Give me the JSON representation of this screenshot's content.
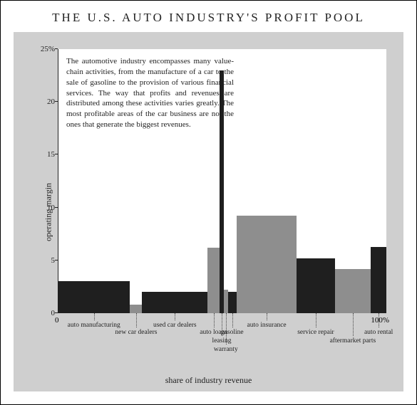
{
  "title": "THE U.S. AUTO INDUSTRY'S PROFIT POOL",
  "ylabel": "operating margin",
  "xlabel": "share of industry revenue",
  "annotation": "The automotive industry encompasses many value-chain activities, from the manufacture of a car to the sale of gasoline to the provision of various financial services. The way that profits and revenues are distributed among these activities varies greatly. The most profitable areas of the car business are not the ones that generate the biggest revenues.",
  "annotation_fontsize": 11,
  "chart": {
    "type": "variable-width-bar",
    "background_color": "#ffffff",
    "frame_color": "#cfcfcf",
    "axis_color": "#222222",
    "ylim": [
      0,
      25
    ],
    "yticks": [
      0,
      5,
      10,
      15,
      20,
      25
    ],
    "ytick_suffix_last": "%",
    "xaxis_end_labels": [
      "0",
      "100%"
    ],
    "segments": [
      {
        "label": "auto manufacturing",
        "width_pct": 21.0,
        "height": 3.0,
        "color": "#1f1f1f",
        "label_dy": 12
      },
      {
        "label": "new car dealers",
        "width_pct": 3.5,
        "height": 0.8,
        "color": "#8e8e8e",
        "label_dy": 22
      },
      {
        "label": "used car dealers",
        "width_pct": 19.0,
        "height": 2.0,
        "color": "#1f1f1f",
        "label_dy": 12
      },
      {
        "label": "auto loans",
        "width_pct": 3.5,
        "height": 6.2,
        "color": "#8e8e8e",
        "label_dy": 22
      },
      {
        "label": "leasing",
        "width_pct": 1.2,
        "height": 23.0,
        "color": "#1f1f1f",
        "label_dy": 34
      },
      {
        "label": "warranty",
        "width_pct": 1.2,
        "height": 2.2,
        "color": "#8e8e8e",
        "label_dy": 46
      },
      {
        "label": "gasoline",
        "width_pct": 2.5,
        "height": 2.0,
        "color": "#1f1f1f",
        "label_dy": 22
      },
      {
        "label": "auto insurance",
        "width_pct": 17.5,
        "height": 9.2,
        "color": "#8e8e8e",
        "label_dy": 12
      },
      {
        "label": "service repair",
        "width_pct": 11.0,
        "height": 5.2,
        "color": "#1f1f1f",
        "label_dy": 22
      },
      {
        "label": "aftermarket parts",
        "width_pct": 10.5,
        "height": 4.2,
        "color": "#8e8e8e",
        "label_dy": 34
      },
      {
        "label": "auto rental",
        "width_pct": 4.5,
        "height": 6.3,
        "color": "#1f1f1f",
        "label_dy": 22
      }
    ]
  }
}
